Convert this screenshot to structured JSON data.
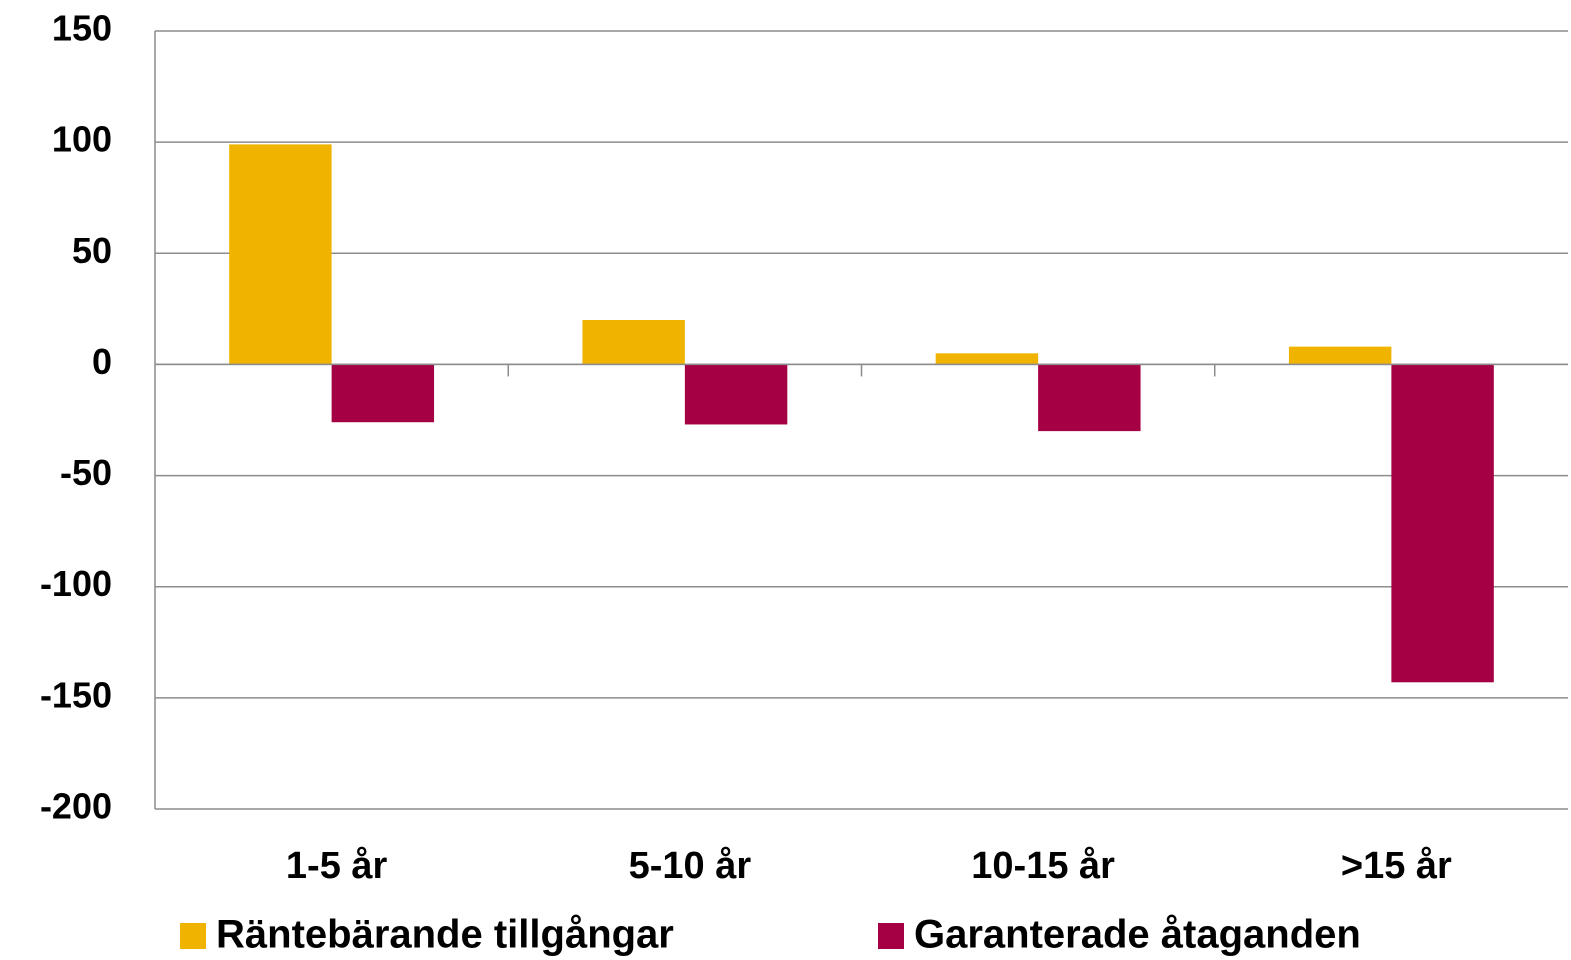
{
  "chart_data": {
    "type": "bar",
    "categories": [
      "1-5 år",
      "5-10 år",
      "10-15 år",
      ">15 år"
    ],
    "series": [
      {
        "name": "Räntebärande tillgångar",
        "color": "#f0b400",
        "values": [
          99,
          20,
          5,
          8
        ]
      },
      {
        "name": "Garanterade åtaganden",
        "color": "#a50043",
        "values": [
          -26,
          -27,
          -30,
          -143
        ]
      }
    ],
    "ylim": [
      -200,
      150
    ],
    "yticks": [
      -200,
      -150,
      -100,
      -50,
      0,
      50,
      100,
      150
    ],
    "grid": true,
    "legend": "bottom"
  }
}
